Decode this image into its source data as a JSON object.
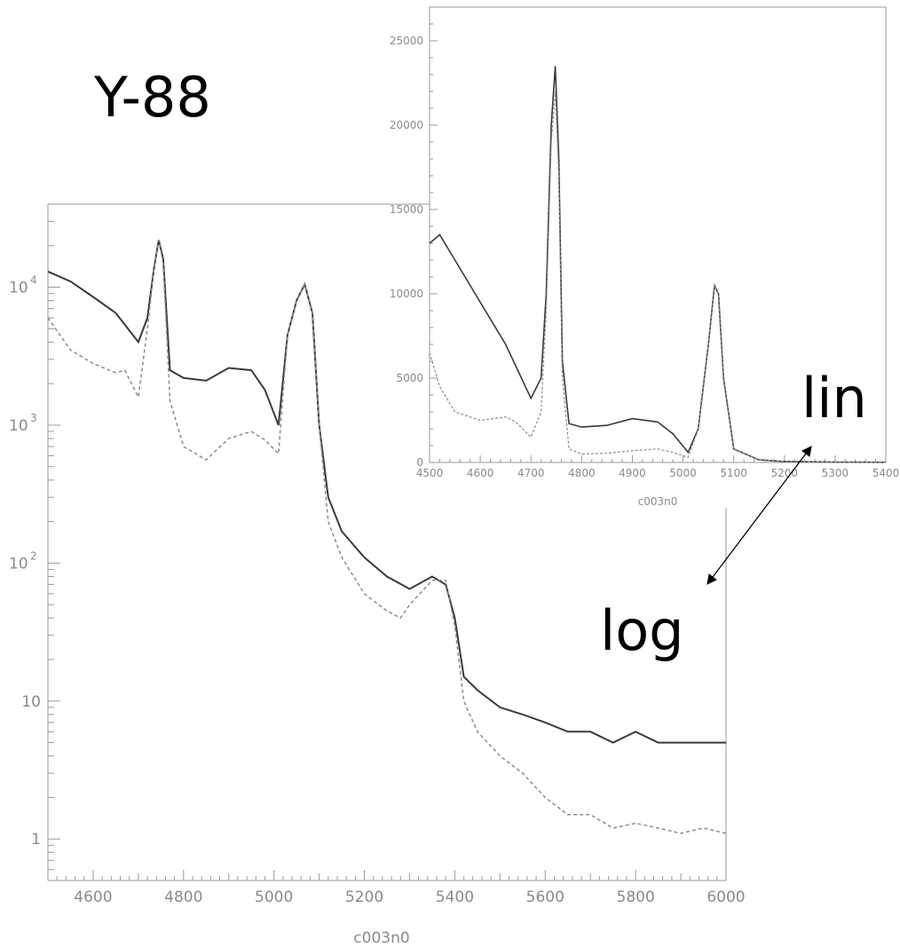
{
  "page": {
    "title": "Y-88",
    "lin_label": "lin",
    "log_label": "log"
  },
  "colors": {
    "series_solid": "#3a3a3a",
    "series_dashed": "#8c8c8c",
    "axis": "#9a9a9a",
    "annotation": "#000000"
  },
  "chart_data": [
    {
      "id": "log-plot",
      "type": "line",
      "y_scale": "log",
      "xlabel": "c003n0",
      "xlim": [
        4500,
        6000
      ],
      "ylim": [
        0.5,
        40000
      ],
      "x_ticks": [
        4600,
        4800,
        5000,
        5200,
        5400,
        5600,
        5800,
        6000
      ],
      "x_tick_labels": [
        "4600",
        "4800",
        "5000",
        "5200",
        "5400",
        "5600",
        "5800",
        "6000"
      ],
      "y_ticks": [
        1,
        10,
        100,
        1000,
        10000
      ],
      "y_tick_labels": [
        {
          "base": "1",
          "exp": ""
        },
        {
          "base": "10",
          "exp": ""
        },
        {
          "base": "10",
          "exp": "2"
        },
        {
          "base": "10",
          "exp": "3"
        },
        {
          "base": "10",
          "exp": "4"
        }
      ],
      "series": [
        {
          "style": "solid",
          "x": [
            4500,
            4550,
            4600,
            4650,
            4700,
            4720,
            4735,
            4745,
            4755,
            4770,
            4800,
            4850,
            4900,
            4950,
            4980,
            5010,
            5030,
            5050,
            5068,
            5085,
            5100,
            5120,
            5150,
            5200,
            5250,
            5300,
            5350,
            5380,
            5400,
            5420,
            5450,
            5500,
            5550,
            5600,
            5650,
            5700,
            5750,
            5800,
            5850,
            5900,
            5950,
            6000
          ],
          "y": [
            13000,
            11000,
            8500,
            6500,
            4000,
            6000,
            14000,
            22000,
            16000,
            2500,
            2200,
            2100,
            2600,
            2500,
            1800,
            1000,
            4500,
            8000,
            10500,
            6500,
            1000,
            300,
            170,
            110,
            80,
            65,
            80,
            70,
            40,
            15,
            12,
            9,
            8,
            7,
            6,
            6,
            5,
            6,
            5,
            5,
            5,
            5
          ]
        },
        {
          "style": "dashed",
          "x": [
            4500,
            4550,
            4600,
            4650,
            4670,
            4700,
            4720,
            4735,
            4745,
            4755,
            4770,
            4800,
            4850,
            4900,
            4950,
            4980,
            5010,
            5030,
            5050,
            5068,
            5085,
            5100,
            5120,
            5150,
            5200,
            5250,
            5280,
            5300,
            5350,
            5380,
            5400,
            5420,
            5450,
            5500,
            5550,
            5600,
            5650,
            5700,
            5750,
            5800,
            5850,
            5900,
            5950,
            6000
          ],
          "y": [
            6000,
            3500,
            2800,
            2400,
            2500,
            1600,
            5000,
            14000,
            22000,
            15000,
            1500,
            700,
            560,
            800,
            900,
            780,
            620,
            4500,
            8000,
            10500,
            6500,
            1000,
            200,
            110,
            60,
            45,
            40,
            50,
            75,
            75,
            35,
            10,
            6,
            4,
            3,
            2,
            1.5,
            1.5,
            1.2,
            1.3,
            1.2,
            1.1,
            1.2,
            1.1
          ]
        }
      ]
    },
    {
      "id": "lin-plot",
      "type": "line",
      "y_scale": "linear",
      "xlabel": "c003n0",
      "xlim": [
        4500,
        5400
      ],
      "ylim": [
        0,
        27000
      ],
      "x_ticks": [
        4500,
        4600,
        4700,
        4800,
        4900,
        5000,
        5100,
        5200,
        5300,
        5400
      ],
      "x_tick_labels": [
        "4500",
        "4600",
        "4700",
        "4800",
        "4900",
        "5000",
        "5100",
        "5200",
        "5300",
        "5400"
      ],
      "y_ticks": [
        0,
        5000,
        10000,
        15000,
        20000,
        25000
      ],
      "y_tick_labels": [
        "0",
        "5000",
        "10000",
        "15000",
        "20000",
        "25000"
      ],
      "series": [
        {
          "style": "solid",
          "x": [
            4500,
            4520,
            4550,
            4600,
            4650,
            4700,
            4720,
            4730,
            4740,
            4748,
            4755,
            4762,
            4775,
            4800,
            4850,
            4900,
            4950,
            4980,
            5010,
            5030,
            5050,
            5062,
            5070,
            5080,
            5100,
            5150,
            5200,
            5300,
            5400
          ],
          "y": [
            13000,
            13500,
            12000,
            9500,
            7000,
            3800,
            5000,
            10000,
            20000,
            23500,
            18000,
            6000,
            2300,
            2100,
            2200,
            2600,
            2400,
            1700,
            600,
            2000,
            7000,
            10500,
            10000,
            5000,
            800,
            150,
            60,
            20,
            10
          ]
        },
        {
          "style": "dashed",
          "x": [
            4500,
            4520,
            4550,
            4600,
            4650,
            4670,
            4700,
            4720,
            4730,
            4740,
            4748,
            4755,
            4762,
            4775,
            4800,
            4850,
            4900,
            4950,
            4980,
            5010,
            5030,
            5050,
            5062,
            5070,
            5080,
            5100,
            5150,
            5200,
            5300,
            5400
          ],
          "y": [
            6500,
            4500,
            3000,
            2500,
            2700,
            2400,
            1500,
            3000,
            9000,
            19000,
            22000,
            17000,
            5000,
            800,
            500,
            550,
            700,
            800,
            600,
            300,
            2000,
            7000,
            10500,
            10000,
            5000,
            800,
            150,
            60,
            20,
            10
          ]
        }
      ]
    }
  ]
}
